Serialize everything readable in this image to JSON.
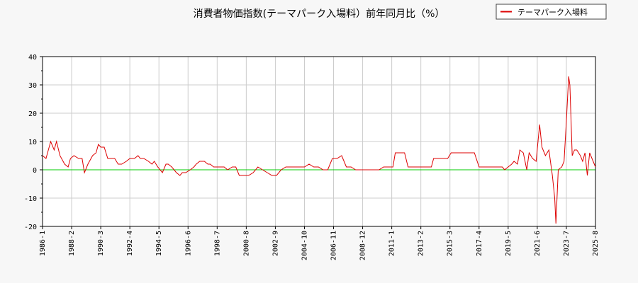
{
  "chart_data": {
    "type": "line",
    "title": "消費者物価指数(テーマパーク入場料）前年同月比（%）",
    "xlabel": "",
    "ylabel": "",
    "ylim": [
      -20,
      40
    ],
    "yticks": [
      40,
      30,
      20,
      10,
      0,
      -10,
      -20
    ],
    "xlim": [
      "1986-1",
      "2025-8"
    ],
    "xticks": [
      "1986-1",
      "1988-2",
      "1990-3",
      "1992-4",
      "1994-5",
      "1996-6",
      "1998-7",
      "2000-8",
      "2002-9",
      "2004-10",
      "2006-11",
      "2008-12",
      "2011-1",
      "2013-2",
      "2015-3",
      "2017-4",
      "2019-5",
      "2021-6",
      "2023-7",
      "2025-8"
    ],
    "grid": true,
    "legend": "top-right",
    "zero_line_color": "#00cc00",
    "series": [
      {
        "name": "テーマパーク入場料",
        "color": "#dd0000",
        "points": [
          [
            "1986-1",
            5
          ],
          [
            "1986-4",
            4
          ],
          [
            "1986-8",
            10
          ],
          [
            "1986-11",
            7
          ],
          [
            "1987-1",
            10
          ],
          [
            "1987-4",
            5
          ],
          [
            "1987-8",
            2
          ],
          [
            "1987-11",
            1
          ],
          [
            "1988-1",
            4
          ],
          [
            "1988-4",
            5
          ],
          [
            "1988-8",
            4
          ],
          [
            "1988-11",
            4
          ],
          [
            "1989-1",
            -1
          ],
          [
            "1989-4",
            2
          ],
          [
            "1989-8",
            5
          ],
          [
            "1989-11",
            6
          ],
          [
            "1990-1",
            9
          ],
          [
            "1990-3",
            8
          ],
          [
            "1990-6",
            8
          ],
          [
            "1990-9",
            4
          ],
          [
            "1990-12",
            4
          ],
          [
            "1991-3",
            4
          ],
          [
            "1991-6",
            2
          ],
          [
            "1991-9",
            2
          ],
          [
            "1992-1",
            3
          ],
          [
            "1992-4",
            4
          ],
          [
            "1992-8",
            4
          ],
          [
            "1992-11",
            5
          ],
          [
            "1993-1",
            4
          ],
          [
            "1993-4",
            4
          ],
          [
            "1993-8",
            3
          ],
          [
            "1993-11",
            2
          ],
          [
            "1994-1",
            3
          ],
          [
            "1994-4",
            1
          ],
          [
            "1994-8",
            -1
          ],
          [
            "1994-11",
            2
          ],
          [
            "1995-1",
            2
          ],
          [
            "1995-4",
            1
          ],
          [
            "1995-8",
            -1
          ],
          [
            "1995-11",
            -2
          ],
          [
            "1996-1",
            -1
          ],
          [
            "1996-4",
            -1
          ],
          [
            "1996-8",
            0
          ],
          [
            "1996-11",
            1
          ],
          [
            "1997-1",
            2
          ],
          [
            "1997-4",
            3
          ],
          [
            "1997-8",
            3
          ],
          [
            "1997-11",
            2
          ],
          [
            "1998-1",
            2
          ],
          [
            "1998-4",
            1
          ],
          [
            "1998-8",
            1
          ],
          [
            "1998-11",
            1
          ],
          [
            "1999-1",
            1
          ],
          [
            "1999-4",
            0
          ],
          [
            "1999-8",
            1
          ],
          [
            "1999-11",
            1
          ],
          [
            "2000-2",
            -2
          ],
          [
            "2000-6",
            -2
          ],
          [
            "2000-10",
            -2
          ],
          [
            "2001-2",
            -1
          ],
          [
            "2001-6",
            1
          ],
          [
            "2001-10",
            0
          ],
          [
            "2002-2",
            -1
          ],
          [
            "2002-6",
            -2
          ],
          [
            "2002-10",
            -2
          ],
          [
            "2003-2",
            0
          ],
          [
            "2003-6",
            1
          ],
          [
            "2003-10",
            1
          ],
          [
            "2004-2",
            1
          ],
          [
            "2004-6",
            1
          ],
          [
            "2004-10",
            1
          ],
          [
            "2005-2",
            2
          ],
          [
            "2005-6",
            1
          ],
          [
            "2005-10",
            1
          ],
          [
            "2006-2",
            0
          ],
          [
            "2006-6",
            0
          ],
          [
            "2006-10",
            4
          ],
          [
            "2007-2",
            4
          ],
          [
            "2007-6",
            5
          ],
          [
            "2007-10",
            1
          ],
          [
            "2008-2",
            1
          ],
          [
            "2008-6",
            0
          ],
          [
            "2008-10",
            0
          ],
          [
            "2009-2",
            0
          ],
          [
            "2009-6",
            0
          ],
          [
            "2009-10",
            0
          ],
          [
            "2010-2",
            0
          ],
          [
            "2010-6",
            1
          ],
          [
            "2010-10",
            1
          ],
          [
            "2011-2",
            1
          ],
          [
            "2011-4",
            6
          ],
          [
            "2011-8",
            6
          ],
          [
            "2011-12",
            6
          ],
          [
            "2012-3",
            1
          ],
          [
            "2012-7",
            1
          ],
          [
            "2012-11",
            1
          ],
          [
            "2013-3",
            1
          ],
          [
            "2013-7",
            1
          ],
          [
            "2013-11",
            1
          ],
          [
            "2014-1",
            4
          ],
          [
            "2014-5",
            4
          ],
          [
            "2014-9",
            4
          ],
          [
            "2015-1",
            4
          ],
          [
            "2015-4",
            6
          ],
          [
            "2015-8",
            6
          ],
          [
            "2015-12",
            6
          ],
          [
            "2016-4",
            6
          ],
          [
            "2016-8",
            6
          ],
          [
            "2016-12",
            6
          ],
          [
            "2017-4",
            1
          ],
          [
            "2017-8",
            1
          ],
          [
            "2017-12",
            1
          ],
          [
            "2018-4",
            1
          ],
          [
            "2018-8",
            1
          ],
          [
            "2018-12",
            1
          ],
          [
            "2019-2",
            0
          ],
          [
            "2019-5",
            1
          ],
          [
            "2019-8",
            2
          ],
          [
            "2019-10",
            3
          ],
          [
            "2020-1",
            2
          ],
          [
            "2020-3",
            7
          ],
          [
            "2020-6",
            6
          ],
          [
            "2020-9",
            0
          ],
          [
            "2020-11",
            6
          ],
          [
            "2021-2",
            4
          ],
          [
            "2021-5",
            3
          ],
          [
            "2021-8",
            16
          ],
          [
            "2021-10",
            8
          ],
          [
            "2022-1",
            5
          ],
          [
            "2022-4",
            7
          ],
          [
            "2022-7",
            -2
          ],
          [
            "2022-9",
            -10
          ],
          [
            "2022-10",
            -19
          ],
          [
            "2022-12",
            0
          ],
          [
            "2023-3",
            1
          ],
          [
            "2023-5",
            3
          ],
          [
            "2023-7",
            17
          ],
          [
            "2023-9",
            33
          ],
          [
            "2023-10",
            30
          ],
          [
            "2023-12",
            5
          ],
          [
            "2024-2",
            7
          ],
          [
            "2024-4",
            7
          ],
          [
            "2024-7",
            5
          ],
          [
            "2024-9",
            3
          ],
          [
            "2024-11",
            6
          ],
          [
            "2025-1",
            -2
          ],
          [
            "2025-3",
            6
          ],
          [
            "2025-6",
            3
          ],
          [
            "2025-8",
            1
          ]
        ]
      }
    ]
  }
}
